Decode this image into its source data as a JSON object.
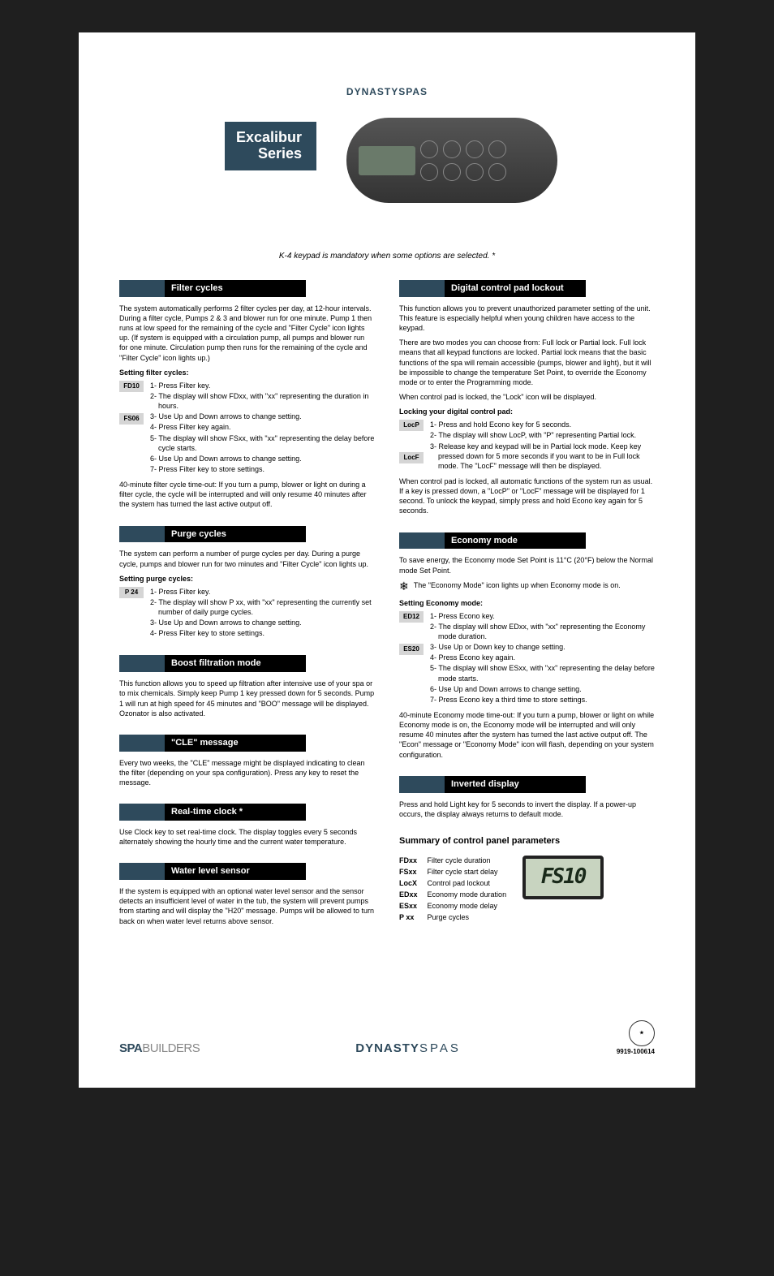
{
  "hero": {
    "brand_logo_text": "DYNASTYSPAS",
    "series_line1": "Excalibur",
    "series_line2": "Series",
    "caption": "K-4 keypad is mandatory when some options are selected. *"
  },
  "left": {
    "filter_cycles": {
      "title": "Filter cycles",
      "body": "The system automatically performs 2 filter cycles per day, at 12-hour intervals. During a filter cycle, Pumps 2 & 3 and blower run for one minute. Pump 1 then runs at low speed for the remaining of the cycle and \"Filter Cycle\" icon lights up. (If system is equipped with a circulation pump, all pumps and blower run for one minute. Circulation pump then runs for the remaining of the cycle and \"Filter Cycle\" icon lights up.)",
      "sub": "Setting filter cycles:",
      "chip1": "FD10",
      "chip2": "FS06",
      "s1": "1- Press Filter key.",
      "s2": "2- The display will show FDxx, with \"xx\" representing the duration in hours.",
      "s3": "3- Use Up and Down arrows to change setting.",
      "s4": "4- Press Filter key again.",
      "s5": "5- The display will show FSxx, with \"xx\" representing the delay before cycle starts.",
      "s6": "6- Use Up and Down arrows to change setting.",
      "s7": "7- Press Filter key to store settings.",
      "timeout": "40-minute filter cycle time-out: If you turn a pump, blower or light on during a filter cycle, the cycle will be interrupted and will only resume 40 minutes after the system has turned the last active output off."
    },
    "purge": {
      "title": "Purge cycles",
      "body": "The system can perform a number of purge cycles per day. During a purge cycle, pumps and blower run for two minutes and \"Filter Cycle\" icon lights up.",
      "sub": "Setting purge cycles:",
      "chip": "P 24",
      "s1": "1- Press Filter key.",
      "s2": "2- The display will show P xx, with \"xx\" representing the currently set number of daily purge cycles.",
      "s3": "3- Use Up and Down arrows to change setting.",
      "s4": "4- Press Filter key to store settings."
    },
    "boost": {
      "title": "Boost filtration mode",
      "body": "This function allows you to speed up filtration after intensive use of your spa or to mix chemicals. Simply keep Pump 1 key pressed down for 5 seconds. Pump 1 will run at high speed for 45 minutes and \"BOO\" message will be displayed. Ozonator is also activated."
    },
    "cle": {
      "title": "\"CLE\" message",
      "body": "Every two weeks, the \"CLE\" message might be displayed indicating to clean the filter (depending on your spa configuration). Press any key to reset the message."
    },
    "clock": {
      "title": "Real-time clock *",
      "body": "Use Clock key to set real-time clock. The display toggles every 5 seconds alternately showing the hourly time and the current water temperature."
    },
    "water": {
      "title": "Water level sensor",
      "body": "If the system is equipped with an optional water level sensor and the sensor detects an insufficient level of water in the tub, the system will prevent pumps from starting and will display the \"H20\" message. Pumps will be allowed to turn back on when water level returns above sensor."
    }
  },
  "right": {
    "lockout": {
      "title": "Digital control pad lockout",
      "p1": "This function allows you to prevent unauthorized parameter setting of the unit. This feature is especially helpful when young children have access to the keypad.",
      "p2": "There are two modes you can choose from: Full lock or Partial lock. Full lock means that all keypad functions are locked. Partial lock means that the basic functions of the spa will remain accessible (pumps, blower and light), but it will be impossible to change the temperature Set Point, to override the Economy mode or to enter the Programming mode.",
      "p3": "When control pad is locked, the \"Lock\" icon will be displayed.",
      "sub": "Locking your digital control pad:",
      "chip1": "LocP",
      "chip2": "LocF",
      "s1": "1- Press and hold Econo key for 5 seconds.",
      "s2": "2- The display will show LocP, with \"P\" representing Partial lock.",
      "s3": "3- Release key and keypad will be in Partial lock mode. Keep key pressed down for 5 more seconds if you want to be in Full lock mode. The \"LocF\" message will then be displayed.",
      "p4": "When control pad is locked, all automatic functions of the system run as usual. If a key is pressed down, a \"LocP\" or \"LocF\" message will be displayed for 1 second. To unlock the keypad, simply press and hold Econo key again for 5 seconds."
    },
    "economy": {
      "title": "Economy mode",
      "p1": "To save energy, the Economy mode Set Point is 11°C (20°F) below the Normal mode Set Point.",
      "note": "The \"Economy Mode\" icon lights up when Economy mode is on.",
      "sub": "Setting Economy mode:",
      "chip1": "ED12",
      "chip2": "ES20",
      "s1": "1- Press Econo key.",
      "s2": "2- The display will show EDxx, with \"xx\" representing the Economy mode duration.",
      "s3": "3- Use Up or Down key to change setting.",
      "s4": "4- Press Econo key again.",
      "s5": "5- The display will show ESxx, with \"xx\" representing the delay before mode starts.",
      "s6": "6- Use Up and Down arrows to change setting.",
      "s7": "7- Press Econo key a third time to store settings.",
      "timeout": "40-minute Economy mode time-out: If you turn a pump, blower or light on while Economy mode is on, the Economy mode will be interrupted and will only resume 40 minutes after the system has turned the last active output off. The \"Econ\" message or \"Economy Mode\" icon will flash, depending on your system configuration."
    },
    "inverted": {
      "title": "Inverted display",
      "body": "Press and hold Light key for 5 seconds to invert the display. If a power-up occurs, the display always returns to default mode."
    },
    "summary": {
      "title": "Summary of control panel parameters",
      "items": [
        {
          "code": "FDxx",
          "label": "Filter cycle duration"
        },
        {
          "code": "FSxx",
          "label": "Filter cycle start delay"
        },
        {
          "code": "LocX",
          "label": "Control pad lockout"
        },
        {
          "code": "EDxx",
          "label": "Economy mode duration"
        },
        {
          "code": "ESxx",
          "label": "Economy mode delay"
        },
        {
          "code": "P xx",
          "label": "Purge cycles"
        }
      ],
      "lcd": "FS10"
    }
  },
  "footer": {
    "left_a": "SPA",
    "left_b": "BUILDERS",
    "mid_a": "DYNASTY",
    "mid_b": "SPAS",
    "right": "9919-100614"
  }
}
